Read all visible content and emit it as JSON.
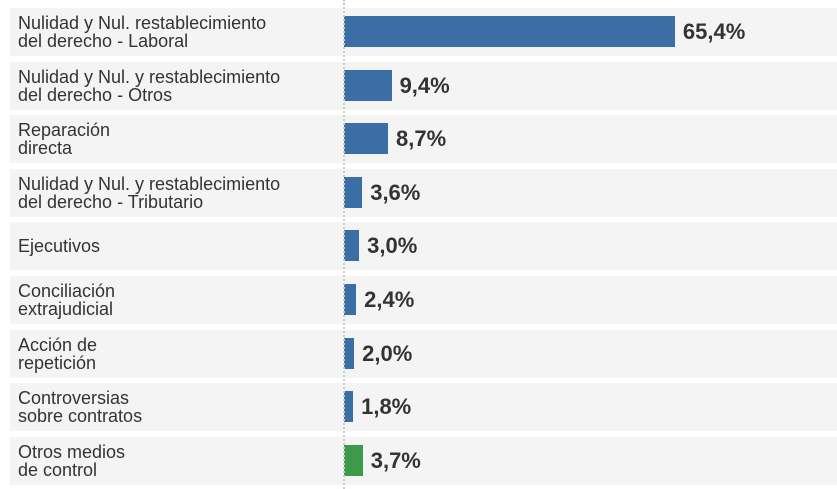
{
  "chart_data": {
    "type": "bar",
    "orientation": "horizontal",
    "categories": [
      "Nulidad y Nul. restablecimiento\ndel derecho - Laboral",
      "Nulidad y Nul. y restablecimiento\ndel derecho - Otros",
      "Reparación\ndirecta",
      "Nulidad y Nul. y restablecimiento\ndel derecho - Tributario",
      "Ejecutivos",
      "Conciliación\nextrajudicial",
      "Acción de\nrepetición",
      "Controversias\nsobre contratos",
      "Otros medios\nde control"
    ],
    "values": [
      65.4,
      9.4,
      8.7,
      3.6,
      3.0,
      2.4,
      2.0,
      1.8,
      3.7
    ],
    "value_labels": [
      "65,4%",
      "9,4%",
      "8,7%",
      "3,6%",
      "3,0%",
      "2,4%",
      "2,0%",
      "1,8%",
      "3,7%"
    ],
    "colors": [
      "#3a6ea5",
      "#3a6ea5",
      "#3a6ea5",
      "#3a6ea5",
      "#3a6ea5",
      "#3a6ea5",
      "#3a6ea5",
      "#3a6ea5",
      "#3c9a4a"
    ]
  }
}
